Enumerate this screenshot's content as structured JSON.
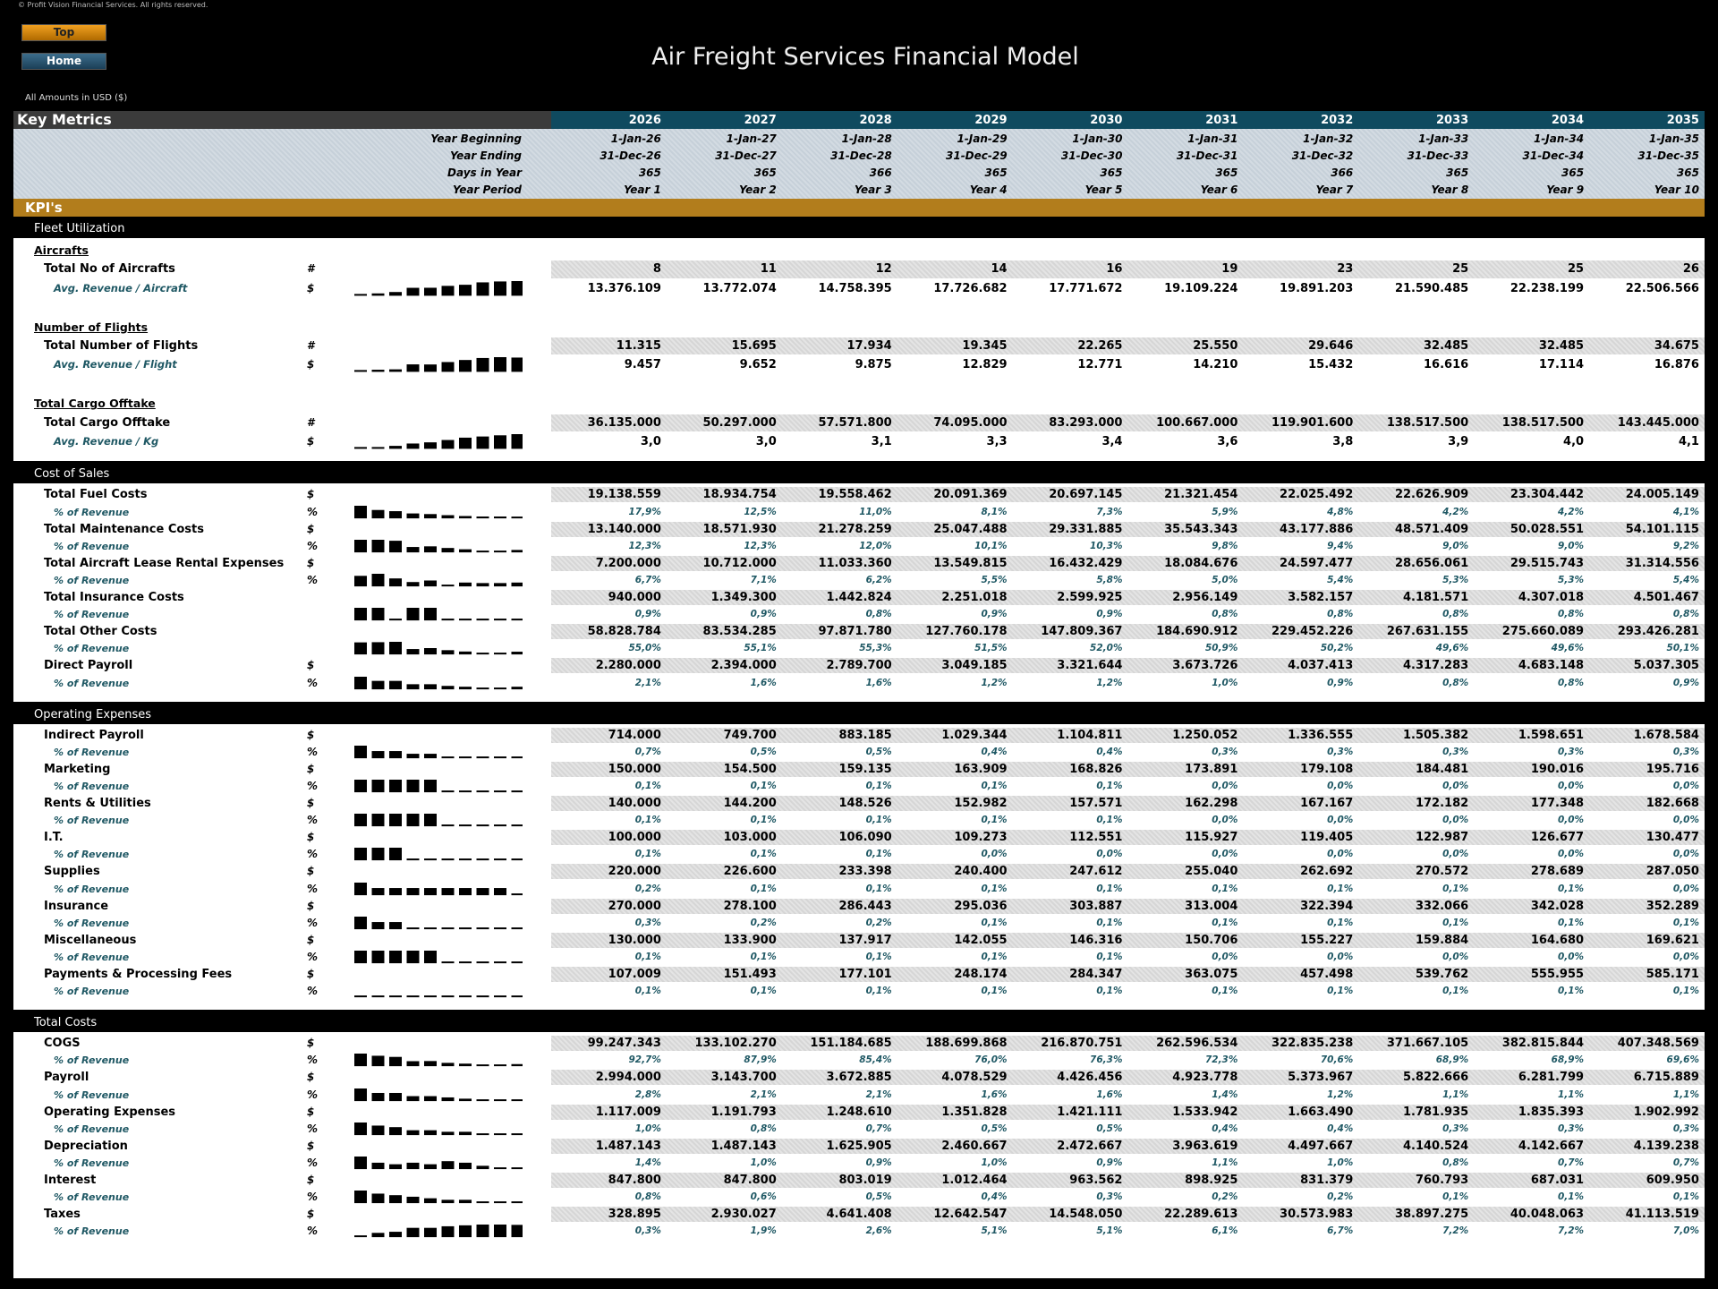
{
  "header": {
    "copyright": "© Profit Vision Financial Services. All rights reserved.",
    "nav": [
      "Top",
      "Home"
    ],
    "title": "Air Freight Services Financial Model",
    "currency_note": "All Amounts in  USD ($)"
  },
  "table": {
    "title": "Key Metrics",
    "years": [
      "2026",
      "2027",
      "2028",
      "2029",
      "2030",
      "2031",
      "2032",
      "2033",
      "2034",
      "2035"
    ],
    "info_rows": [
      {
        "label": "Year Beginning",
        "values": [
          "1-Jan-26",
          "1-Jan-27",
          "1-Jan-28",
          "1-Jan-29",
          "1-Jan-30",
          "1-Jan-31",
          "1-Jan-32",
          "1-Jan-33",
          "1-Jan-34",
          "1-Jan-35"
        ]
      },
      {
        "label": "Year Ending",
        "values": [
          "31-Dec-26",
          "31-Dec-27",
          "31-Dec-28",
          "31-Dec-29",
          "31-Dec-30",
          "31-Dec-31",
          "31-Dec-32",
          "31-Dec-33",
          "31-Dec-34",
          "31-Dec-35"
        ]
      },
      {
        "label": "Days in Year",
        "values": [
          "365",
          "365",
          "366",
          "365",
          "365",
          "365",
          "366",
          "365",
          "365",
          "365"
        ]
      },
      {
        "label": "Year Period",
        "values": [
          "Year 1",
          "Year 2",
          "Year 3",
          "Year 4",
          "Year 5",
          "Year 6",
          "Year 7",
          "Year 8",
          "Year 9",
          "Year 10"
        ]
      }
    ],
    "band": "KPI's",
    "sections": [
      {
        "title": "Fleet Utilization",
        "groups": [
          {
            "title": "Aircrafts",
            "rows": [
              {
                "label": "Total No of Aircrafts",
                "unit": "#",
                "values": [
                  "8",
                  "11",
                  "12",
                  "14",
                  "16",
                  "19",
                  "23",
                  "25",
                  "25",
                  "26"
                ]
              },
              {
                "label": "Avg. Revenue / Aircraft",
                "unit": "$",
                "values": [
                  "13.376.109",
                  "13.772.074",
                  "14.758.395",
                  "17.726.682",
                  "17.771.672",
                  "19.109.224",
                  "19.891.203",
                  "21.590.485",
                  "22.238.199",
                  "22.506.566"
                ]
              }
            ]
          },
          {
            "title": "Number of Flights",
            "rows": [
              {
                "label": "Total Number of Flights",
                "unit": "#",
                "values": [
                  "11.315",
                  "15.695",
                  "17.934",
                  "19.345",
                  "22.265",
                  "25.550",
                  "29.646",
                  "32.485",
                  "32.485",
                  "34.675"
                ]
              },
              {
                "label": "Avg. Revenue / Flight",
                "unit": "$",
                "values": [
                  "9.457",
                  "9.652",
                  "9.875",
                  "12.829",
                  "12.771",
                  "14.210",
                  "15.432",
                  "16.616",
                  "17.114",
                  "16.876"
                ]
              }
            ]
          },
          {
            "title": "Total Cargo Offtake",
            "rows": [
              {
                "label": "Total Cargo Offtake",
                "unit": "#",
                "values": [
                  "36.135.000",
                  "50.297.000",
                  "57.571.800",
                  "74.095.000",
                  "83.293.000",
                  "100.667.000",
                  "119.901.600",
                  "138.517.500",
                  "138.517.500",
                  "143.445.000"
                ]
              },
              {
                "label": "Avg. Revenue / Kg",
                "unit": "$",
                "values": [
                  "3,0",
                  "3,0",
                  "3,1",
                  "3,3",
                  "3,4",
                  "3,6",
                  "3,8",
                  "3,9",
                  "4,0",
                  "4,1"
                ]
              }
            ]
          }
        ]
      },
      {
        "title": "Cost of Sales",
        "rows": [
          {
            "label": "Total Fuel Costs",
            "unit": "$",
            "values": [
              "19.138.559",
              "18.934.754",
              "19.558.462",
              "20.091.369",
              "20.697.145",
              "21.321.454",
              "22.025.492",
              "22.626.909",
              "23.304.442",
              "24.005.149"
            ]
          },
          {
            "label": "% of Revenue",
            "unit": "%",
            "values": [
              "17,9%",
              "12,5%",
              "11,0%",
              "8,1%",
              "7,3%",
              "5,9%",
              "4,8%",
              "4,2%",
              "4,2%",
              "4,1%"
            ]
          },
          {
            "label": "Total Maintenance Costs",
            "unit": "$",
            "values": [
              "13.140.000",
              "18.571.930",
              "21.278.259",
              "25.047.488",
              "29.331.885",
              "35.543.343",
              "43.177.886",
              "48.571.409",
              "50.028.551",
              "54.101.115"
            ]
          },
          {
            "label": "% of Revenue",
            "unit": "%",
            "values": [
              "12,3%",
              "12,3%",
              "12,0%",
              "10,1%",
              "10,3%",
              "9,8%",
              "9,4%",
              "9,0%",
              "9,0%",
              "9,2%"
            ]
          },
          {
            "label": "Total Aircraft Lease Rental Expenses",
            "unit": "$",
            "values": [
              "7.200.000",
              "10.712.000",
              "11.033.360",
              "13.549.815",
              "16.432.429",
              "18.084.676",
              "24.597.477",
              "28.656.061",
              "29.515.743",
              "31.314.556"
            ]
          },
          {
            "label": "% of Revenue",
            "unit": "%",
            "values": [
              "6,7%",
              "7,1%",
              "6,2%",
              "5,5%",
              "5,8%",
              "5,0%",
              "5,4%",
              "5,3%",
              "5,3%",
              "5,4%"
            ]
          },
          {
            "label": "Total Insurance Costs",
            "values": [
              "940.000",
              "1.349.300",
              "1.442.824",
              "2.251.018",
              "2.599.925",
              "2.956.149",
              "3.582.157",
              "4.181.571",
              "4.307.018",
              "4.501.467"
            ]
          },
          {
            "label": "% of Revenue",
            "values": [
              "0,9%",
              "0,9%",
              "0,8%",
              "0,9%",
              "0,9%",
              "0,8%",
              "0,8%",
              "0,8%",
              "0,8%",
              "0,8%"
            ]
          },
          {
            "label": "Total Other Costs",
            "values": [
              "58.828.784",
              "83.534.285",
              "97.871.780",
              "127.760.178",
              "147.809.367",
              "184.690.912",
              "229.452.226",
              "267.631.155",
              "275.660.089",
              "293.426.281"
            ]
          },
          {
            "label": "% of Revenue",
            "values": [
              "55,0%",
              "55,1%",
              "55,3%",
              "51,5%",
              "52,0%",
              "50,9%",
              "50,2%",
              "49,6%",
              "49,6%",
              "50,1%"
            ]
          },
          {
            "label": "Direct Payroll",
            "unit": "$",
            "values": [
              "2.280.000",
              "2.394.000",
              "2.789.700",
              "3.049.185",
              "3.321.644",
              "3.673.726",
              "4.037.413",
              "4.317.283",
              "4.683.148",
              "5.037.305"
            ]
          },
          {
            "label": "% of Revenue",
            "unit": "%",
            "values": [
              "2,1%",
              "1,6%",
              "1,6%",
              "1,2%",
              "1,2%",
              "1,0%",
              "0,9%",
              "0,8%",
              "0,8%",
              "0,9%"
            ]
          }
        ]
      },
      {
        "title": "Operating Expenses",
        "rows": [
          {
            "label": "Indirect Payroll",
            "unit": "$",
            "values": [
              "714.000",
              "749.700",
              "883.185",
              "1.029.344",
              "1.104.811",
              "1.250.052",
              "1.336.555",
              "1.505.382",
              "1.598.651",
              "1.678.584"
            ]
          },
          {
            "label": "% of Revenue",
            "unit": "%",
            "values": [
              "0,7%",
              "0,5%",
              "0,5%",
              "0,4%",
              "0,4%",
              "0,3%",
              "0,3%",
              "0,3%",
              "0,3%",
              "0,3%"
            ]
          },
          {
            "label": "Marketing",
            "unit": "$",
            "values": [
              "150.000",
              "154.500",
              "159.135",
              "163.909",
              "168.826",
              "173.891",
              "179.108",
              "184.481",
              "190.016",
              "195.716"
            ]
          },
          {
            "label": "% of Revenue",
            "unit": "%",
            "values": [
              "0,1%",
              "0,1%",
              "0,1%",
              "0,1%",
              "0,1%",
              "0,0%",
              "0,0%",
              "0,0%",
              "0,0%",
              "0,0%"
            ]
          },
          {
            "label": "Rents & Utilities",
            "unit": "$",
            "values": [
              "140.000",
              "144.200",
              "148.526",
              "152.982",
              "157.571",
              "162.298",
              "167.167",
              "172.182",
              "177.348",
              "182.668"
            ]
          },
          {
            "label": "% of Revenue",
            "unit": "%",
            "values": [
              "0,1%",
              "0,1%",
              "0,1%",
              "0,1%",
              "0,1%",
              "0,0%",
              "0,0%",
              "0,0%",
              "0,0%",
              "0,0%"
            ]
          },
          {
            "label": "I.T.",
            "unit": "$",
            "values": [
              "100.000",
              "103.000",
              "106.090",
              "109.273",
              "112.551",
              "115.927",
              "119.405",
              "122.987",
              "126.677",
              "130.477"
            ]
          },
          {
            "label": "% of Revenue",
            "unit": "%",
            "values": [
              "0,1%",
              "0,1%",
              "0,1%",
              "0,0%",
              "0,0%",
              "0,0%",
              "0,0%",
              "0,0%",
              "0,0%",
              "0,0%"
            ]
          },
          {
            "label": "Supplies",
            "unit": "$",
            "values": [
              "220.000",
              "226.600",
              "233.398",
              "240.400",
              "247.612",
              "255.040",
              "262.692",
              "270.572",
              "278.689",
              "287.050"
            ]
          },
          {
            "label": "% of Revenue",
            "unit": "%",
            "values": [
              "0,2%",
              "0,1%",
              "0,1%",
              "0,1%",
              "0,1%",
              "0,1%",
              "0,1%",
              "0,1%",
              "0,1%",
              "0,0%"
            ]
          },
          {
            "label": "Insurance",
            "unit": "$",
            "values": [
              "270.000",
              "278.100",
              "286.443",
              "295.036",
              "303.887",
              "313.004",
              "322.394",
              "332.066",
              "342.028",
              "352.289"
            ]
          },
          {
            "label": "% of Revenue",
            "unit": "%",
            "values": [
              "0,3%",
              "0,2%",
              "0,2%",
              "0,1%",
              "0,1%",
              "0,1%",
              "0,1%",
              "0,1%",
              "0,1%",
              "0,1%"
            ]
          },
          {
            "label": "Miscellaneous",
            "unit": "$",
            "values": [
              "130.000",
              "133.900",
              "137.917",
              "142.055",
              "146.316",
              "150.706",
              "155.227",
              "159.884",
              "164.680",
              "169.621"
            ]
          },
          {
            "label": "% of Revenue",
            "unit": "%",
            "values": [
              "0,1%",
              "0,1%",
              "0,1%",
              "0,1%",
              "0,1%",
              "0,0%",
              "0,0%",
              "0,0%",
              "0,0%",
              "0,0%"
            ]
          },
          {
            "label": "Payments & Processing Fees",
            "unit": "$",
            "values": [
              "107.009",
              "151.493",
              "177.101",
              "248.174",
              "284.347",
              "363.075",
              "457.498",
              "539.762",
              "555.955",
              "585.171"
            ]
          },
          {
            "label": "% of Revenue",
            "unit": "%",
            "values": [
              "0,1%",
              "0,1%",
              "0,1%",
              "0,1%",
              "0,1%",
              "0,1%",
              "0,1%",
              "0,1%",
              "0,1%",
              "0,1%"
            ]
          }
        ]
      },
      {
        "title": "Total Costs",
        "rows": [
          {
            "label": "COGS",
            "unit": "$",
            "values": [
              "99.247.343",
              "133.102.270",
              "151.184.685",
              "188.699.868",
              "216.870.751",
              "262.596.534",
              "322.835.238",
              "371.667.105",
              "382.815.844",
              "407.348.569"
            ]
          },
          {
            "label": "% of Revenue",
            "unit": "%",
            "values": [
              "92,7%",
              "87,9%",
              "85,4%",
              "76,0%",
              "76,3%",
              "72,3%",
              "70,6%",
              "68,9%",
              "68,9%",
              "69,6%"
            ]
          },
          {
            "label": "Payroll",
            "unit": "$",
            "values": [
              "2.994.000",
              "3.143.700",
              "3.672.885",
              "4.078.529",
              "4.426.456",
              "4.923.778",
              "5.373.967",
              "5.822.666",
              "6.281.799",
              "6.715.889"
            ]
          },
          {
            "label": "% of Revenue",
            "unit": "%",
            "values": [
              "2,8%",
              "2,1%",
              "2,1%",
              "1,6%",
              "1,6%",
              "1,4%",
              "1,2%",
              "1,1%",
              "1,1%",
              "1,1%"
            ]
          },
          {
            "label": "Operating Expenses",
            "unit": "$",
            "values": [
              "1.117.009",
              "1.191.793",
              "1.248.610",
              "1.351.828",
              "1.421.111",
              "1.533.942",
              "1.663.490",
              "1.781.935",
              "1.835.393",
              "1.902.992"
            ]
          },
          {
            "label": "% of Revenue",
            "unit": "%",
            "values": [
              "1,0%",
              "0,8%",
              "0,7%",
              "0,5%",
              "0,5%",
              "0,4%",
              "0,4%",
              "0,3%",
              "0,3%",
              "0,3%"
            ]
          },
          {
            "label": "Depreciation",
            "unit": "$",
            "values": [
              "1.487.143",
              "1.487.143",
              "1.625.905",
              "2.460.667",
              "2.472.667",
              "3.963.619",
              "4.497.667",
              "4.140.524",
              "4.142.667",
              "4.139.238"
            ]
          },
          {
            "label": "% of Revenue",
            "unit": "%",
            "values": [
              "1,4%",
              "1,0%",
              "0,9%",
              "1,0%",
              "0,9%",
              "1,1%",
              "1,0%",
              "0,8%",
              "0,7%",
              "0,7%"
            ]
          },
          {
            "label": "Interest",
            "unit": "$",
            "values": [
              "847.800",
              "847.800",
              "803.019",
              "1.012.464",
              "963.562",
              "898.925",
              "831.379",
              "760.793",
              "687.031",
              "609.950"
            ]
          },
          {
            "label": "% of Revenue",
            "unit": "%",
            "values": [
              "0,8%",
              "0,6%",
              "0,5%",
              "0,4%",
              "0,3%",
              "0,2%",
              "0,2%",
              "0,1%",
              "0,1%",
              "0,1%"
            ]
          },
          {
            "label": "Taxes",
            "unit": "$",
            "values": [
              "328.895",
              "2.930.027",
              "4.641.408",
              "12.642.547",
              "14.548.050",
              "22.289.613",
              "30.573.983",
              "38.897.275",
              "40.048.063",
              "41.113.519"
            ]
          },
          {
            "label": "% of Revenue",
            "unit": "%",
            "values": [
              "0,3%",
              "1,9%",
              "2,6%",
              "5,1%",
              "5,1%",
              "6,1%",
              "6,7%",
              "7,2%",
              "7,2%",
              "7,0%"
            ]
          }
        ]
      }
    ]
  }
}
